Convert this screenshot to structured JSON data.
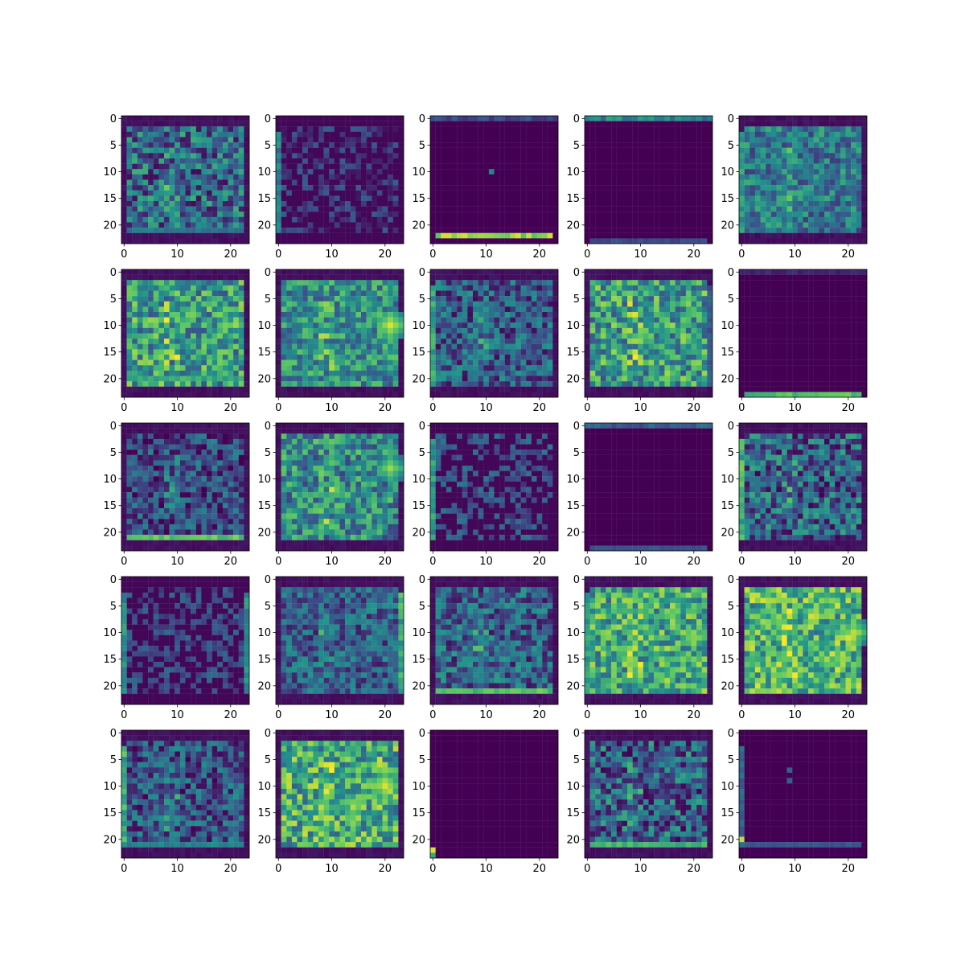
{
  "chart_data": {
    "type": "heatmap",
    "layout": {
      "rows": 5,
      "cols": 5
    },
    "colormap": "viridis",
    "colormap_stops": [
      "#440154",
      "#3b528b",
      "#21918c",
      "#5ec962",
      "#fde725"
    ],
    "grid": false,
    "matrix_size": 24,
    "xlim": [
      -0.5,
      23.5
    ],
    "ylim": [
      23.5,
      -0.5
    ],
    "x_ticks": [
      0,
      10,
      20
    ],
    "y_ticks": [
      0,
      5,
      10,
      15,
      20
    ],
    "x_tick_labels": [
      "0",
      "10",
      "20"
    ],
    "y_tick_labels": [
      "0",
      "5",
      "10",
      "15",
      "20"
    ],
    "panels": [
      {
        "id": 1,
        "pattern": "frame",
        "seed": 11,
        "level": 0.33,
        "contrast": 0.3,
        "bottom_band": [
          21,
          0.45
        ]
      },
      {
        "id": 2,
        "pattern": "sparse",
        "seed": 12,
        "level": 0.05,
        "contrast": 0.25,
        "left_edge": 0.55
      },
      {
        "id": 3,
        "pattern": "empty",
        "seed": 13,
        "level": 0.0,
        "contrast": 0.0,
        "top_band": [
          0,
          0.3
        ],
        "bottom_band": [
          22,
          0.95
        ],
        "spots": [
          [
            10,
            11,
            0.45
          ]
        ]
      },
      {
        "id": 4,
        "pattern": "empty",
        "seed": 14,
        "level": 0.0,
        "contrast": 0.0,
        "top_band": [
          0,
          0.6
        ],
        "bottom_band": [
          23,
          0.25
        ]
      },
      {
        "id": 5,
        "pattern": "frame",
        "seed": 15,
        "level": 0.4,
        "contrast": 0.22,
        "left_edge": 0.65
      },
      {
        "id": 6,
        "pattern": "frame",
        "seed": 16,
        "level": 0.55,
        "contrast": 0.3,
        "bottom_band": [
          20,
          0.7
        ]
      },
      {
        "id": 7,
        "pattern": "frame",
        "seed": 17,
        "level": 0.5,
        "contrast": 0.25,
        "hot": [
          10,
          21,
          0.95
        ]
      },
      {
        "id": 8,
        "pattern": "frame",
        "seed": 18,
        "level": 0.28,
        "contrast": 0.25,
        "left_edge": 0.7
      },
      {
        "id": 9,
        "pattern": "frame",
        "seed": 19,
        "level": 0.55,
        "contrast": 0.3,
        "right_edge": 0.35
      },
      {
        "id": 10,
        "pattern": "empty",
        "seed": 20,
        "level": 0.0,
        "contrast": 0.0,
        "top_band": [
          0,
          0.15
        ],
        "bottom_band": [
          23,
          0.8
        ]
      },
      {
        "id": 11,
        "pattern": "frame",
        "seed": 21,
        "level": 0.22,
        "contrast": 0.25,
        "bottom_band": [
          21,
          0.85
        ]
      },
      {
        "id": 12,
        "pattern": "frame",
        "seed": 22,
        "level": 0.48,
        "contrast": 0.28,
        "hot": [
          8,
          21,
          0.85
        ]
      },
      {
        "id": 13,
        "pattern": "sparse",
        "seed": 23,
        "level": 0.15,
        "contrast": 0.25,
        "left_edge": 0.65
      },
      {
        "id": 14,
        "pattern": "empty",
        "seed": 24,
        "level": 0.0,
        "contrast": 0.0,
        "top_band": [
          0,
          0.4
        ],
        "bottom_band": [
          23,
          0.3
        ]
      },
      {
        "id": 15,
        "pattern": "frame",
        "seed": 25,
        "level": 0.3,
        "contrast": 0.3,
        "left_edge": 0.8
      },
      {
        "id": 16,
        "pattern": "sparse",
        "seed": 26,
        "level": 0.15,
        "contrast": 0.2,
        "left_edge": 0.6,
        "right_edge": 0.6
      },
      {
        "id": 17,
        "pattern": "frame",
        "seed": 27,
        "level": 0.3,
        "contrast": 0.22,
        "right_edge": 0.75
      },
      {
        "id": 18,
        "pattern": "frame",
        "seed": 28,
        "level": 0.3,
        "contrast": 0.25,
        "bottom_band": [
          21,
          0.8
        ]
      },
      {
        "id": 19,
        "pattern": "frame",
        "seed": 29,
        "level": 0.6,
        "contrast": 0.28,
        "left_edge": 0.7
      },
      {
        "id": 20,
        "pattern": "frame",
        "seed": 30,
        "level": 0.65,
        "contrast": 0.3,
        "hot": [
          10,
          21,
          0.9
        ]
      },
      {
        "id": 21,
        "pattern": "frame",
        "seed": 31,
        "level": 0.25,
        "contrast": 0.25,
        "left_edge": 0.8,
        "bottom_band": [
          21,
          0.5
        ]
      },
      {
        "id": 22,
        "pattern": "frame",
        "seed": 32,
        "level": 0.62,
        "contrast": 0.3,
        "hot": [
          10,
          20,
          0.95
        ]
      },
      {
        "id": 23,
        "pattern": "empty",
        "seed": 33,
        "level": 0.0,
        "contrast": 0.0,
        "spots": [
          [
            22,
            0,
            0.95
          ],
          [
            23,
            0,
            0.6
          ]
        ]
      },
      {
        "id": 24,
        "pattern": "frame",
        "seed": 34,
        "level": 0.3,
        "contrast": 0.3,
        "bottom_band": [
          21,
          0.75
        ]
      },
      {
        "id": 25,
        "pattern": "empty",
        "seed": 35,
        "level": 0.0,
        "contrast": 0.0,
        "left_edge": 0.4,
        "bottom_band": [
          21,
          0.3
        ],
        "spots": [
          [
            7,
            9,
            0.3
          ],
          [
            9,
            9,
            0.3
          ],
          [
            20,
            0,
            0.9
          ]
        ]
      }
    ]
  }
}
